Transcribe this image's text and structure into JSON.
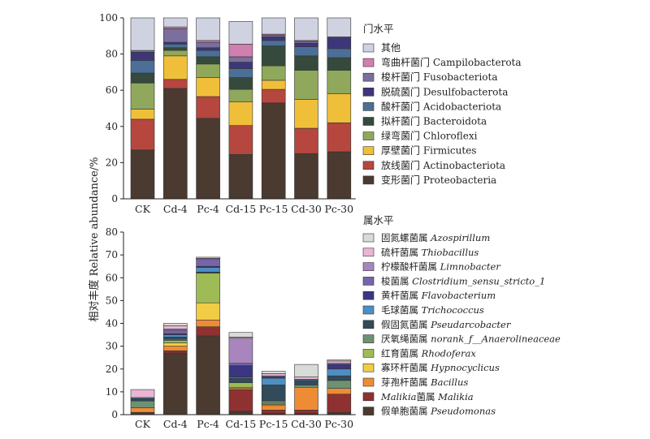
{
  "figure": {
    "ylabel": "相对丰度 Relative abundance/%"
  },
  "chart_data": [
    {
      "type": "bar",
      "stacked": true,
      "legend_title": "门水平",
      "categories": [
        "CK",
        "Cd-4",
        "Pc-4",
        "Cd-15",
        "Pc-15",
        "Cd-30",
        "Pc-30"
      ],
      "ylim": [
        0,
        100
      ],
      "yticks": [
        0,
        20,
        40,
        60,
        80,
        100
      ],
      "legend_placement": "right",
      "series": [
        {
          "name": "变形菌门 Proteobacteria",
          "color": "#4b3a2f",
          "values": [
            27,
            61,
            44.5,
            24.5,
            53,
            25,
            26
          ]
        },
        {
          "name": "放线菌门 Actinobacteriota",
          "color": "#b5473f",
          "values": [
            17,
            5,
            12,
            16,
            7.5,
            14,
            16
          ]
        },
        {
          "name": "厚壁菌门 Firmicutes",
          "color": "#f0bf3a",
          "values": [
            5.5,
            13,
            10.5,
            13,
            5,
            16,
            16
          ]
        },
        {
          "name": "绿弯菌门 Chloroflexi",
          "color": "#8fa85c",
          "values": [
            14.5,
            3,
            7.5,
            7,
            8,
            16,
            13
          ]
        },
        {
          "name": "拟杆菌门 Bacteroidota",
          "color": "#354a3c",
          "values": [
            5.5,
            1.5,
            4,
            6.5,
            11,
            8,
            7
          ]
        },
        {
          "name": "酸杆菌门 Acidobacteriota",
          "color": "#4c6f98",
          "values": [
            7,
            2,
            3.5,
            5,
            3,
            5,
            5
          ]
        },
        {
          "name": "脱硫菌门 Desulfobacterota",
          "color": "#3d3779",
          "values": [
            4.5,
            1,
            1.5,
            3.5,
            2,
            2,
            6
          ]
        },
        {
          "name": "梭杆菌门 Fusobacteriota",
          "color": "#7a6f9e",
          "values": [
            1,
            7.5,
            3,
            3,
            1,
            1,
            0.5
          ]
        },
        {
          "name": "弯曲杆菌门 Campilobacterota",
          "color": "#d07fb0",
          "values": [
            0,
            1,
            1,
            7,
            0.5,
            0.5,
            0
          ]
        },
        {
          "name": "其他",
          "color": "#cfd3e1",
          "values": [
            18,
            5,
            12.5,
            12.5,
            9,
            12.5,
            10.5
          ]
        }
      ]
    },
    {
      "type": "bar",
      "stacked": true,
      "legend_title": "属水平",
      "categories": [
        "CK",
        "Cd-4",
        "Pc-4",
        "Cd-15",
        "Pc-15",
        "Cd-30",
        "Pc-30"
      ],
      "ylim": [
        0,
        80
      ],
      "yticks": [
        0,
        10,
        20,
        30,
        40,
        50,
        60,
        70,
        80
      ],
      "legend_placement": "right",
      "series": [
        {
          "name": "假单胞菌属 Pseudomonas",
          "italic": "Pseudomonas",
          "color": "#4b3a2f",
          "values": [
            1,
            27,
            34.5,
            1.5,
            0.5,
            0.5,
            1
          ]
        },
        {
          "name": "Malikia菌属 Malikia",
          "italic": "Malikia",
          "color": "#8f3131",
          "values": [
            0,
            1,
            4,
            9.5,
            1.5,
            1.5,
            8
          ]
        },
        {
          "name": "芽孢杆菌属 Bacillus",
          "italic": "Bacillus",
          "color": "#ee8c36",
          "values": [
            2,
            2,
            3,
            0.5,
            2,
            10,
            2.5
          ]
        },
        {
          "name": "寡环杆菌属 Hypnocyclicus",
          "italic": "Hypnocyclicus",
          "color": "#f0cd45",
          "values": [
            0,
            1.5,
            7.5,
            0.5,
            0.5,
            0,
            0
          ]
        },
        {
          "name": "红育菌属 Rhodoferax",
          "italic": "Rhodoferax",
          "color": "#9ebb55",
          "values": [
            0,
            1,
            13,
            2,
            0.5,
            0,
            0
          ]
        },
        {
          "name": "厌氧绳菌属 norank_f__Anaerolineaceae",
          "italic": "norank_f__Anaerolineaceae",
          "color": "#6c9274",
          "values": [
            3,
            0.5,
            0,
            0,
            1,
            1,
            3.5
          ]
        },
        {
          "name": "假固氮菌属 Pseudarcobacter",
          "italic": "Pseudarcobacter",
          "color": "#324a5a",
          "values": [
            1,
            1,
            0.5,
            2,
            7,
            2,
            2
          ]
        },
        {
          "name": "毛球菌属 Trichococcus",
          "italic": "Trichococcus",
          "color": "#4d8fc3",
          "values": [
            0.5,
            1,
            2,
            0.5,
            3,
            0.5,
            3
          ]
        },
        {
          "name": "黄杆菌属 Flavobacterium",
          "italic": "Flavobacterium",
          "color": "#3b3681",
          "values": [
            0,
            0.5,
            0.5,
            5,
            0.5,
            0,
            2
          ]
        },
        {
          "name": "梭菌属 Clostridium_sensu_stricto_1",
          "italic": "Clostridium_sensu_stricto_1",
          "color": "#7666a8",
          "values": [
            0,
            1.5,
            3,
            1,
            0.5,
            0,
            0.5
          ]
        },
        {
          "name": "柠檬酸杆菌属 Limnobacter",
          "italic": "Limnobacter",
          "color": "#a886bd",
          "values": [
            0,
            0.5,
            0.5,
            11,
            0,
            0,
            0
          ]
        },
        {
          "name": "硫杆菌属 Thiobacillus",
          "italic": "Thiobacillus",
          "color": "#e9b6d3",
          "values": [
            3.5,
            1.5,
            0.5,
            0.5,
            1,
            1,
            1
          ]
        },
        {
          "name": "固氮螺菌属 Azospirillum",
          "italic": "Azospirillum",
          "color": "#d8dcd8",
          "values": [
            0,
            1,
            0,
            2,
            1,
            5.5,
            0.5
          ]
        }
      ]
    }
  ]
}
